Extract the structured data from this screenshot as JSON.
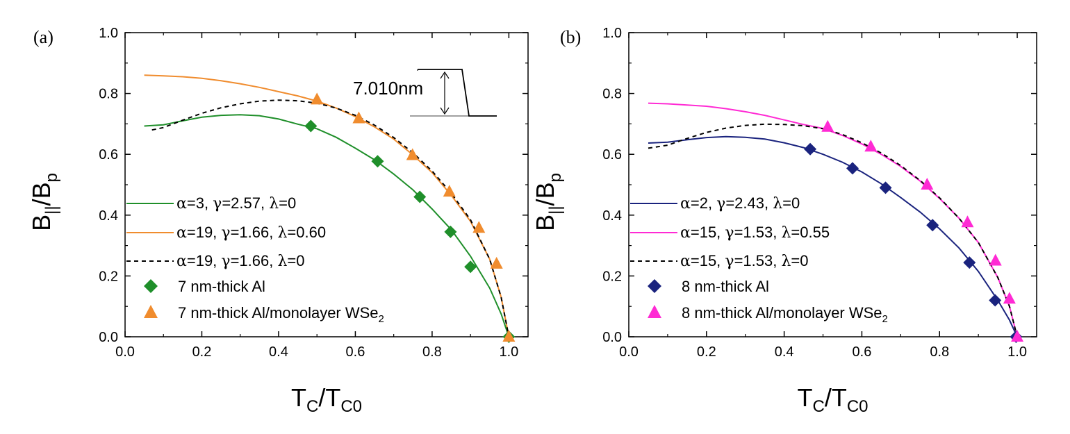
{
  "chart_data": [
    {
      "panel_label": "(a)",
      "type": "line+scatter",
      "xlabel": {
        "main": "T",
        "sub1": "C",
        "mid": "/T",
        "sub2": "C0"
      },
      "ylabel": {
        "main": "B",
        "sub1": "||",
        "mid": "/B",
        "sub2": "p"
      },
      "xlim": [
        0.0,
        1.05
      ],
      "ylim": [
        0.0,
        1.0
      ],
      "xticks": [
        "0.0",
        "0.2",
        "0.4",
        "0.6",
        "0.8",
        "1.0"
      ],
      "yticks": [
        "0.0",
        "0.2",
        "0.4",
        "0.6",
        "0.8",
        "1.0"
      ],
      "inset": {
        "label": "7.010nm"
      },
      "legend_position": "lower-left",
      "series": [
        {
          "label_parts": {
            "a": "α",
            "a_val": "=3,",
            "g": "γ",
            "g_val": "=2.57,",
            "l": "λ",
            "l_val": "=0"
          },
          "kind": "line",
          "style": "solid",
          "color": "#1f8f2a",
          "x": [
            0.05,
            0.1,
            0.15,
            0.2,
            0.25,
            0.3,
            0.35,
            0.4,
            0.45,
            0.5,
            0.55,
            0.6,
            0.65,
            0.7,
            0.75,
            0.8,
            0.85,
            0.9,
            0.95,
            0.98,
            1.0
          ],
          "y": [
            0.693,
            0.697,
            0.71,
            0.722,
            0.728,
            0.73,
            0.727,
            0.716,
            0.699,
            0.684,
            0.656,
            0.62,
            0.582,
            0.535,
            0.483,
            0.42,
            0.352,
            0.265,
            0.16,
            0.075,
            0.0
          ]
        },
        {
          "label_parts": {
            "a": "α",
            "a_val": "=19,",
            "g": "γ",
            "g_val": "=1.66,",
            "l": "λ",
            "l_val": "=0.60"
          },
          "kind": "line",
          "style": "solid",
          "color": "#f08c2e",
          "x": [
            0.05,
            0.1,
            0.15,
            0.2,
            0.25,
            0.3,
            0.35,
            0.4,
            0.45,
            0.5,
            0.55,
            0.6,
            0.65,
            0.7,
            0.75,
            0.8,
            0.85,
            0.9,
            0.95,
            0.98,
            1.0
          ],
          "y": [
            0.86,
            0.858,
            0.855,
            0.85,
            0.842,
            0.832,
            0.82,
            0.806,
            0.792,
            0.775,
            0.752,
            0.724,
            0.69,
            0.65,
            0.598,
            0.54,
            0.465,
            0.38,
            0.255,
            0.13,
            0.0
          ]
        },
        {
          "label_parts": {
            "a": "α",
            "a_val": "=19,",
            "g": "γ",
            "g_val": "=1.66,",
            "l": "λ",
            "l_val": "=0"
          },
          "kind": "line",
          "style": "dashed",
          "color": "#000000",
          "x": [
            0.07,
            0.1,
            0.15,
            0.2,
            0.25,
            0.3,
            0.35,
            0.4,
            0.45,
            0.5,
            0.55,
            0.6,
            0.65,
            0.7,
            0.75,
            0.8,
            0.85,
            0.9,
            0.95,
            0.98,
            1.0
          ],
          "y": [
            0.68,
            0.688,
            0.712,
            0.735,
            0.753,
            0.766,
            0.775,
            0.778,
            0.776,
            0.768,
            0.752,
            0.728,
            0.696,
            0.655,
            0.605,
            0.545,
            0.472,
            0.385,
            0.255,
            0.13,
            0.0
          ]
        },
        {
          "label": "7 nm-thick Al",
          "kind": "scatter",
          "marker": "diamond",
          "color": "#1f8f2a",
          "x": [
            0.484,
            0.658,
            0.768,
            0.848,
            0.9,
            1.0
          ],
          "y": [
            0.693,
            0.577,
            0.46,
            0.345,
            0.23,
            0.0
          ]
        },
        {
          "label_parts": {
            "text": "7 nm-thick Al/monolayer WSe",
            "sub": "2"
          },
          "kind": "scatter",
          "marker": "triangle",
          "color": "#f08c2e",
          "x": [
            0.5,
            0.609,
            0.749,
            0.845,
            0.922,
            0.968,
            1.0
          ],
          "y": [
            0.78,
            0.718,
            0.597,
            0.477,
            0.358,
            0.24,
            0.0
          ]
        }
      ]
    },
    {
      "panel_label": "(b)",
      "type": "line+scatter",
      "xlabel": {
        "main": "T",
        "sub1": "C",
        "mid": "/T",
        "sub2": "C0"
      },
      "ylabel": {
        "main": "B",
        "sub1": "||",
        "mid": "/B",
        "sub2": "p"
      },
      "xlim": [
        0.0,
        1.05
      ],
      "ylim": [
        0.0,
        1.0
      ],
      "xticks": [
        "0.0",
        "0.2",
        "0.4",
        "0.6",
        "0.8",
        "1.0"
      ],
      "yticks": [
        "0.0",
        "0.2",
        "0.4",
        "0.6",
        "0.8",
        "1.0"
      ],
      "legend_position": "lower-left",
      "series": [
        {
          "label_parts": {
            "a": "α",
            "a_val": "=2,",
            "g": "γ",
            "g_val": "=2.43,",
            "l": "λ",
            "l_val": "=0"
          },
          "kind": "line",
          "style": "solid",
          "color": "#1a237e",
          "x": [
            0.05,
            0.1,
            0.15,
            0.2,
            0.25,
            0.3,
            0.35,
            0.4,
            0.45,
            0.5,
            0.55,
            0.6,
            0.65,
            0.7,
            0.75,
            0.8,
            0.85,
            0.9,
            0.95,
            0.98,
            1.0
          ],
          "y": [
            0.637,
            0.64,
            0.648,
            0.655,
            0.658,
            0.656,
            0.65,
            0.638,
            0.622,
            0.6,
            0.574,
            0.542,
            0.503,
            0.458,
            0.41,
            0.355,
            0.292,
            0.215,
            0.12,
            0.055,
            0.0
          ]
        },
        {
          "label_parts": {
            "a": "α",
            "a_val": "=15,",
            "g": "γ",
            "g_val": "=1.53,",
            "l": "λ",
            "l_val": "=0.55"
          },
          "kind": "line",
          "style": "solid",
          "color": "#ff2ad4",
          "x": [
            0.05,
            0.1,
            0.15,
            0.2,
            0.25,
            0.3,
            0.35,
            0.4,
            0.45,
            0.5,
            0.55,
            0.6,
            0.65,
            0.7,
            0.75,
            0.8,
            0.85,
            0.9,
            0.95,
            0.98,
            1.0
          ],
          "y": [
            0.768,
            0.766,
            0.762,
            0.758,
            0.75,
            0.74,
            0.728,
            0.713,
            0.698,
            0.685,
            0.662,
            0.634,
            0.6,
            0.56,
            0.512,
            0.455,
            0.39,
            0.31,
            0.195,
            0.1,
            0.0
          ]
        },
        {
          "label_parts": {
            "a": "α",
            "a_val": "=15,",
            "g": "γ",
            "g_val": "=1.53,",
            "l": "λ",
            "l_val": "=0"
          },
          "kind": "line",
          "style": "dashed",
          "color": "#000000",
          "x": [
            0.05,
            0.1,
            0.15,
            0.2,
            0.25,
            0.3,
            0.35,
            0.4,
            0.45,
            0.5,
            0.55,
            0.6,
            0.65,
            0.7,
            0.75,
            0.8,
            0.85,
            0.9,
            0.95,
            0.98,
            1.0
          ],
          "y": [
            0.62,
            0.63,
            0.652,
            0.672,
            0.686,
            0.695,
            0.699,
            0.698,
            0.694,
            0.684,
            0.665,
            0.638,
            0.604,
            0.563,
            0.514,
            0.457,
            0.39,
            0.31,
            0.195,
            0.1,
            0.0
          ]
        },
        {
          "label": "8 nm-thick Al",
          "kind": "scatter",
          "marker": "diamond",
          "color": "#1a237e",
          "x": [
            0.467,
            0.576,
            0.661,
            0.782,
            0.877,
            0.943,
            0.997
          ],
          "y": [
            0.617,
            0.554,
            0.49,
            0.367,
            0.244,
            0.12,
            0.0
          ]
        },
        {
          "label_parts": {
            "text": "8 nm-thick Al/monolayer WSe",
            "sub": "2"
          },
          "kind": "scatter",
          "marker": "triangle",
          "color": "#ff2ad4",
          "x": [
            0.512,
            0.623,
            0.768,
            0.872,
            0.944,
            0.98,
            1.0
          ],
          "y": [
            0.69,
            0.625,
            0.5,
            0.376,
            0.25,
            0.125,
            0.0
          ]
        }
      ]
    }
  ]
}
